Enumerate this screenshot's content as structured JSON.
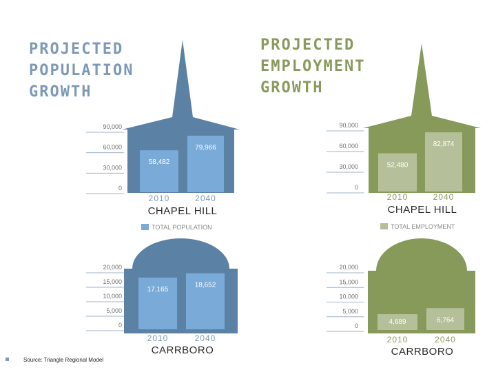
{
  "population_title": [
    "PROJECTED",
    "POPULATION",
    "GROWTH"
  ],
  "employment_title": [
    "PROJECTED",
    "EMPLOYMENT",
    "GROWTH"
  ],
  "source": "Source: Triangle Regional Model",
  "colors": {
    "pop_building": "#5b81a4",
    "pop_bar": "#7aaad8",
    "pop_text": "#7c99b7",
    "emp_building": "#879a5a",
    "emp_bar": "#b5c09a",
    "emp_text": "#8a9a5c"
  },
  "chart_data": [
    {
      "id": "pop-chapel-hill",
      "type": "bar",
      "categories": [
        "2010",
        "2040"
      ],
      "values": [
        58482,
        79966
      ],
      "value_labels": [
        "58,482",
        "79,966"
      ],
      "ticks": [
        "0",
        "30,000",
        "60,000",
        "90,000"
      ],
      "tick_values": [
        0,
        30000,
        60000,
        90000
      ],
      "ylim": [
        0,
        90000
      ],
      "place": "CHAPEL HILL",
      "legend": "TOTAL POPULATION",
      "building": "steeple",
      "theme": "pop"
    },
    {
      "id": "emp-chapel-hill",
      "type": "bar",
      "categories": [
        "2010",
        "2040"
      ],
      "values": [
        52480,
        82874
      ],
      "value_labels": [
        "52,480",
        "82,874"
      ],
      "ticks": [
        "0",
        "30,000",
        "60,000",
        "90,000"
      ],
      "tick_values": [
        0,
        30000,
        60000,
        90000
      ],
      "ylim": [
        0,
        90000
      ],
      "place": "CHAPEL HILL",
      "legend": "TOTAL EMPLOYMENT",
      "building": "steeple",
      "theme": "emp"
    },
    {
      "id": "pop-carrboro",
      "type": "bar",
      "categories": [
        "2010",
        "2040"
      ],
      "values": [
        17165,
        18652
      ],
      "value_labels": [
        "17,165",
        "18,652"
      ],
      "ticks": [
        "0",
        "5,000",
        "10,000",
        "15,000",
        "20,000"
      ],
      "tick_values": [
        0,
        5000,
        10000,
        15000,
        20000
      ],
      "ylim": [
        0,
        20000
      ],
      "place": "CARRBORO",
      "legend": "",
      "building": "dome",
      "theme": "pop"
    },
    {
      "id": "emp-carrboro",
      "type": "bar",
      "categories": [
        "2010",
        "2040"
      ],
      "values": [
        4689,
        6764
      ],
      "value_labels": [
        "4,689",
        "6,764"
      ],
      "ticks": [
        "0",
        "5,000",
        "10,000",
        "15,000",
        "20,000"
      ],
      "tick_values": [
        0,
        5000,
        10000,
        15000,
        20000
      ],
      "ylim": [
        0,
        20000
      ],
      "place": "CARRBORO",
      "legend": "",
      "building": "dome",
      "theme": "emp"
    }
  ]
}
